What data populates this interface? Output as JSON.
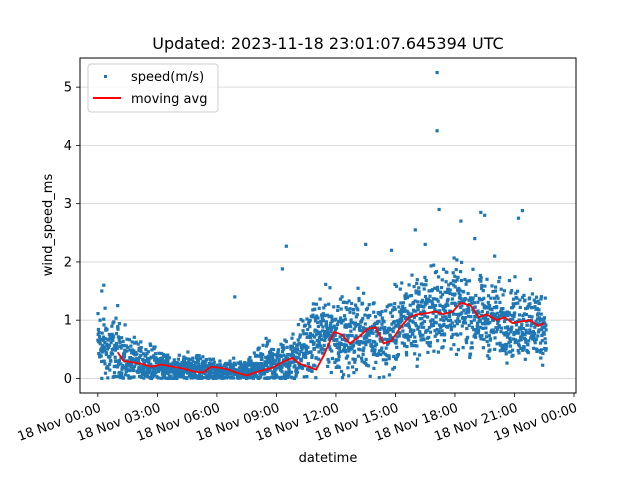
{
  "chart_data": {
    "type": "scatter",
    "title": "Updated: 2023-11-18 23:01:07.645394 UTC",
    "xlabel": "datetime",
    "ylabel": "wind_speed_ms",
    "x_unit": "hours since 18 Nov 00:00",
    "xlim": [
      -0.9,
      24.1
    ],
    "ylim": [
      -0.25,
      5.5
    ],
    "grid": "horizontal",
    "legend_position": "top-left",
    "x_ticks": [
      {
        "value": 0,
        "label": "18 Nov 00:00"
      },
      {
        "value": 3,
        "label": "18 Nov 03:00"
      },
      {
        "value": 6,
        "label": "18 Nov 06:00"
      },
      {
        "value": 9,
        "label": "18 Nov 09:00"
      },
      {
        "value": 12,
        "label": "18 Nov 12:00"
      },
      {
        "value": 15,
        "label": "18 Nov 15:00"
      },
      {
        "value": 18,
        "label": "18 Nov 18:00"
      },
      {
        "value": 21,
        "label": "18 Nov 21:00"
      },
      {
        "value": 24,
        "label": "19 Nov 00:00"
      }
    ],
    "y_ticks": [
      {
        "value": 0,
        "label": "0"
      },
      {
        "value": 1,
        "label": "1"
      },
      {
        "value": 2,
        "label": "2"
      },
      {
        "value": 3,
        "label": "3"
      },
      {
        "value": 4,
        "label": "4"
      },
      {
        "value": 5,
        "label": "5"
      }
    ],
    "series": [
      {
        "name": "speed(m/s)",
        "kind": "scatter",
        "color": "#1f77b4",
        "envelope": [
          {
            "x": 0.0,
            "mean": 0.6,
            "spread": 0.45
          },
          {
            "x": 0.5,
            "mean": 0.5,
            "spread": 0.45
          },
          {
            "x": 1.0,
            "mean": 0.42,
            "spread": 0.4
          },
          {
            "x": 1.5,
            "mean": 0.3,
            "spread": 0.3
          },
          {
            "x": 2.0,
            "mean": 0.26,
            "spread": 0.25
          },
          {
            "x": 3.0,
            "mean": 0.22,
            "spread": 0.22
          },
          {
            "x": 4.0,
            "mean": 0.15,
            "spread": 0.15
          },
          {
            "x": 5.0,
            "mean": 0.17,
            "spread": 0.2
          },
          {
            "x": 6.0,
            "mean": 0.12,
            "spread": 0.12
          },
          {
            "x": 7.5,
            "mean": 0.1,
            "spread": 0.15
          },
          {
            "x": 8.5,
            "mean": 0.22,
            "spread": 0.28
          },
          {
            "x": 9.5,
            "mean": 0.25,
            "spread": 0.3
          },
          {
            "x": 10.5,
            "mean": 0.55,
            "spread": 0.4
          },
          {
            "x": 11.5,
            "mean": 0.85,
            "spread": 0.45
          },
          {
            "x": 12.5,
            "mean": 0.7,
            "spread": 0.45
          },
          {
            "x": 13.5,
            "mean": 0.85,
            "spread": 0.45
          },
          {
            "x": 14.5,
            "mean": 0.65,
            "spread": 0.45
          },
          {
            "x": 15.5,
            "mean": 1.0,
            "spread": 0.5
          },
          {
            "x": 16.5,
            "mean": 1.1,
            "spread": 0.5
          },
          {
            "x": 17.5,
            "mean": 1.25,
            "spread": 0.55
          },
          {
            "x": 18.5,
            "mean": 1.15,
            "spread": 0.5
          },
          {
            "x": 19.5,
            "mean": 1.05,
            "spread": 0.45
          },
          {
            "x": 20.5,
            "mean": 1.0,
            "spread": 0.45
          },
          {
            "x": 21.5,
            "mean": 0.95,
            "spread": 0.45
          },
          {
            "x": 22.5,
            "mean": 0.9,
            "spread": 0.45
          }
        ],
        "x_range": [
          0.0,
          22.6
        ],
        "approx_count": 2400,
        "outliers": [
          {
            "x": 17.1,
            "y": 5.25
          },
          {
            "x": 17.1,
            "y": 4.25
          },
          {
            "x": 17.2,
            "y": 2.9
          },
          {
            "x": 19.3,
            "y": 2.85
          },
          {
            "x": 19.5,
            "y": 2.8
          },
          {
            "x": 21.2,
            "y": 2.75
          },
          {
            "x": 21.4,
            "y": 2.88
          },
          {
            "x": 13.5,
            "y": 2.3
          },
          {
            "x": 14.8,
            "y": 2.2
          },
          {
            "x": 16.0,
            "y": 2.55
          },
          {
            "x": 9.5,
            "y": 2.27
          },
          {
            "x": 9.3,
            "y": 1.88
          },
          {
            "x": 6.9,
            "y": 1.4
          },
          {
            "x": 0.3,
            "y": 1.6
          },
          {
            "x": 0.2,
            "y": 1.5
          },
          {
            "x": 1.0,
            "y": 1.25
          },
          {
            "x": 16.5,
            "y": 2.3
          },
          {
            "x": 18.3,
            "y": 2.7
          },
          {
            "x": 19.0,
            "y": 2.4
          },
          {
            "x": 20.0,
            "y": 2.1
          }
        ]
      },
      {
        "name": "moving avg",
        "kind": "line",
        "color": "#ff0000",
        "x": [
          1.0,
          1.3,
          1.7,
          2.2,
          2.7,
          3.2,
          3.8,
          4.3,
          4.8,
          5.3,
          5.7,
          6.2,
          6.6,
          7.0,
          7.5,
          7.9,
          8.4,
          8.8,
          9.3,
          9.8,
          10.2,
          10.6,
          11.0,
          11.4,
          11.9,
          12.3,
          12.7,
          13.1,
          13.6,
          14.0,
          14.4,
          14.8,
          15.3,
          15.7,
          16.1,
          16.6,
          17.0,
          17.4,
          17.9,
          18.3,
          18.8,
          19.2,
          19.6,
          20.1,
          20.5,
          20.9,
          21.4,
          21.8,
          22.2,
          22.5
        ],
        "y": [
          0.45,
          0.3,
          0.28,
          0.25,
          0.2,
          0.24,
          0.2,
          0.17,
          0.12,
          0.1,
          0.2,
          0.18,
          0.15,
          0.1,
          0.05,
          0.1,
          0.15,
          0.18,
          0.28,
          0.35,
          0.25,
          0.2,
          0.15,
          0.4,
          0.8,
          0.75,
          0.6,
          0.7,
          0.85,
          0.88,
          0.6,
          0.65,
          0.9,
          1.05,
          1.1,
          1.12,
          1.15,
          1.1,
          1.15,
          1.3,
          1.25,
          1.05,
          1.1,
          1.0,
          1.05,
          0.95,
          0.98,
          1.0,
          0.9,
          0.95
        ]
      }
    ]
  }
}
